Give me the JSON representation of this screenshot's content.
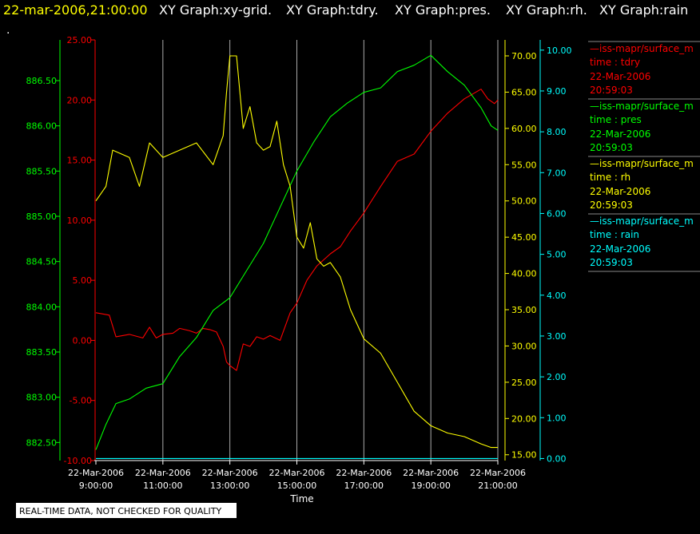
{
  "header": {
    "timestamp": "22-mar-2006,21:00:00",
    "titles": [
      "XY Graph:xy-grid.",
      "XY Graph:tdry.",
      "XY Graph:pres.",
      "XY Graph:rh.",
      "XY Graph:rain"
    ],
    "dot": "."
  },
  "notice": "REAL-TIME DATA, NOT CHECKED FOR QUALITY",
  "colors": {
    "tdry": "#ff0000",
    "pres": "#00ff00",
    "rh": "#ffff00",
    "rain": "#00ffff",
    "grid": "#aaaaaa",
    "header_ts": "#ffff00"
  },
  "legend": [
    {
      "name": "iss-mapr/surface_m",
      "field": "time : tdry",
      "date": "22-Mar-2006",
      "time": "20:59:03",
      "color": "#ff0000"
    },
    {
      "name": "iss-mapr/surface_m",
      "field": "time : pres",
      "date": "22-Mar-2006",
      "time": "20:59:03",
      "color": "#00ff00"
    },
    {
      "name": "iss-mapr/surface_m",
      "field": "time : rh",
      "date": "22-Mar-2006",
      "time": "20:59:03",
      "color": "#ffff00"
    },
    {
      "name": "iss-mapr/surface_m",
      "field": "time : rain",
      "date": "22-Mar-2006",
      "time": "20:59:03",
      "color": "#00ffff"
    }
  ],
  "chart_data": {
    "type": "line",
    "xlabel": "Time",
    "x_ticks": [
      {
        "date": "22-Mar-2006",
        "time": "9:00:00",
        "hour": 9
      },
      {
        "date": "22-Mar-2006",
        "time": "11:00:00",
        "hour": 11
      },
      {
        "date": "22-Mar-2006",
        "time": "13:00:00",
        "hour": 13
      },
      {
        "date": "22-Mar-2006",
        "time": "15:00:00",
        "hour": 15
      },
      {
        "date": "22-Mar-2006",
        "time": "17:00:00",
        "hour": 17
      },
      {
        "date": "22-Mar-2006",
        "time": "19:00:00",
        "hour": 19
      },
      {
        "date": "22-Mar-2006",
        "time": "21:00:00",
        "hour": 21
      }
    ],
    "xlim_hours": [
      9,
      21
    ],
    "grid": true,
    "axes": {
      "pres": {
        "range": [
          882.3,
          886.95
        ],
        "ticks": [
          "882.50",
          "883.00",
          "883.50",
          "884.00",
          "884.50",
          "885.00",
          "885.50",
          "886.00",
          "886.50"
        ]
      },
      "tdry": {
        "range": [
          -10,
          25
        ],
        "ticks": [
          "-10.00",
          "-5.00",
          "0.00",
          "5.00",
          "10.00",
          "15.00",
          "20.00",
          "25.00"
        ]
      },
      "rh": {
        "range": [
          14.2,
          72.2
        ],
        "ticks": [
          "15.00",
          "20.00",
          "25.00",
          "30.00",
          "35.00",
          "40.00",
          "45.00",
          "50.00",
          "55.00",
          "60.00",
          "65.00",
          "70.00"
        ]
      },
      "rain": {
        "range": [
          -0.05,
          10.25
        ],
        "ticks": [
          "0.00",
          "1.00",
          "2.00",
          "3.00",
          "4.00",
          "5.00",
          "6.00",
          "7.00",
          "8.00",
          "9.00",
          "10.00"
        ]
      }
    },
    "series": [
      {
        "name": "tdry",
        "hours": [
          9,
          9.4,
          9.6,
          10,
          10.4,
          10.6,
          10.8,
          11,
          11.3,
          11.5,
          11.8,
          12,
          12.2,
          12.4,
          12.6,
          12.8,
          12.9,
          13,
          13.2,
          13.4,
          13.6,
          13.8,
          14,
          14.2,
          14.5,
          14.8,
          15,
          15.3,
          15.6,
          16,
          16.3,
          16.6,
          17,
          17.5,
          18,
          18.5,
          19,
          19.5,
          20,
          20.5,
          20.7,
          20.9,
          21
        ],
        "values": [
          2.3,
          2.1,
          0.3,
          0.5,
          0.2,
          1.1,
          0.2,
          0.5,
          0.6,
          1.0,
          0.8,
          0.6,
          1.0,
          0.9,
          0.7,
          -0.5,
          -1.8,
          -2.1,
          -2.5,
          -0.3,
          -0.5,
          0.3,
          0.1,
          0.4,
          0,
          2.3,
          3.1,
          5,
          6.2,
          7.2,
          7.8,
          9.1,
          10.6,
          12.8,
          14.9,
          15.5,
          17.4,
          18.9,
          20.1,
          20.9,
          20.1,
          19.7,
          20
        ]
      },
      {
        "name": "pres",
        "hours": [
          9,
          9.3,
          9.6,
          10,
          10.5,
          11,
          11.5,
          12,
          12.5,
          13,
          13.5,
          14,
          14.5,
          15,
          15.5,
          16,
          16.5,
          17,
          17.5,
          18,
          18.5,
          19,
          19.5,
          20,
          20.5,
          20.8,
          21
        ],
        "values": [
          882.42,
          882.7,
          882.93,
          882.98,
          883.1,
          883.15,
          883.45,
          883.66,
          883.96,
          884.1,
          884.4,
          884.7,
          885.1,
          885.5,
          885.82,
          886.1,
          886.25,
          886.37,
          886.42,
          886.6,
          886.67,
          886.78,
          886.6,
          886.45,
          886.2,
          886.0,
          885.95
        ]
      },
      {
        "name": "rh",
        "hours": [
          9,
          9.3,
          9.5,
          10,
          10.3,
          10.6,
          11,
          11.5,
          12,
          12.5,
          12.8,
          12.9,
          13,
          13.2,
          13.4,
          13.6,
          13.8,
          14,
          14.2,
          14.4,
          14.6,
          14.8,
          15,
          15.2,
          15.4,
          15.6,
          15.8,
          16,
          16.3,
          16.6,
          17,
          17.5,
          18,
          18.5,
          19,
          19.5,
          20,
          20.5,
          20.8,
          21
        ],
        "values": [
          50,
          52,
          57,
          56,
          52,
          58,
          56,
          57,
          58,
          55,
          59,
          65,
          70,
          70,
          60,
          63,
          58,
          57,
          57.5,
          61,
          55,
          52,
          45,
          43.5,
          47,
          42,
          41,
          41.5,
          39.5,
          35,
          31,
          29,
          25,
          21,
          19,
          18,
          17.5,
          16.5,
          16,
          16
        ]
      },
      {
        "name": "rain",
        "hours": [
          9,
          21
        ],
        "values": [
          0,
          0
        ]
      }
    ]
  }
}
